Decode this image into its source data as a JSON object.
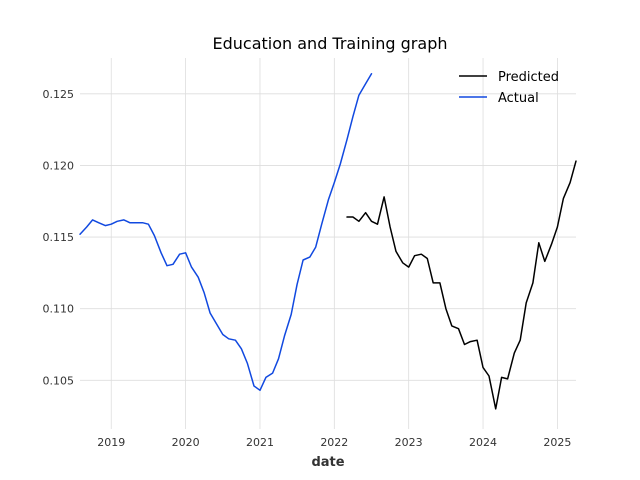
{
  "chart_data": {
    "type": "line",
    "title": "Education and Training graph",
    "xlabel": "date",
    "ylabel": "",
    "x_ticks": [
      "2019",
      "2020",
      "2021",
      "2022",
      "2023",
      "2024",
      "2025"
    ],
    "y_ticks": [
      "0.105",
      "0.110",
      "0.115",
      "0.120",
      "0.125"
    ],
    "xlim": [
      2018.58,
      2025.25
    ],
    "ylim": [
      0.1016,
      0.1275
    ],
    "grid": true,
    "legend": "top-right",
    "series": [
      {
        "name": "Predicted",
        "color": "#000000",
        "x": [
          2022.17,
          2022.25,
          2022.33,
          2022.42,
          2022.5,
          2022.58,
          2022.67,
          2022.75,
          2022.83,
          2022.92,
          2023.0,
          2023.08,
          2023.17,
          2023.25,
          2023.33,
          2023.42,
          2023.5,
          2023.58,
          2023.67,
          2023.75,
          2023.83,
          2023.92,
          2024.0,
          2024.08,
          2024.17,
          2024.25,
          2024.33,
          2024.42,
          2024.5,
          2024.58,
          2024.67,
          2024.75,
          2024.83,
          2024.92,
          2025.0,
          2025.08,
          2025.17,
          2025.25
        ],
        "y": [
          0.1164,
          0.1164,
          0.1161,
          0.1167,
          0.1161,
          0.1159,
          0.1178,
          0.1157,
          0.114,
          0.1132,
          0.1129,
          0.1137,
          0.1138,
          0.1135,
          0.1118,
          0.1118,
          0.11,
          0.1088,
          0.1086,
          0.1075,
          0.1077,
          0.1078,
          0.1059,
          0.1053,
          0.103,
          0.1052,
          0.1051,
          0.1069,
          0.1078,
          0.1104,
          0.1118,
          0.1146,
          0.1133,
          0.1145,
          0.1157,
          0.1177,
          0.1188,
          0.1203
        ]
      },
      {
        "name": "Actual",
        "color": "#1149e0",
        "x": [
          2018.58,
          2018.67,
          2018.75,
          2018.83,
          2018.92,
          2019.0,
          2019.08,
          2019.17,
          2019.25,
          2019.33,
          2019.42,
          2019.5,
          2019.58,
          2019.67,
          2019.75,
          2019.83,
          2019.92,
          2020.0,
          2020.08,
          2020.17,
          2020.25,
          2020.33,
          2020.42,
          2020.5,
          2020.58,
          2020.67,
          2020.75,
          2020.83,
          2020.92,
          2021.0,
          2021.08,
          2021.17,
          2021.25,
          2021.33,
          2021.42,
          2021.5,
          2021.58,
          2021.67,
          2021.75,
          2021.83,
          2021.92,
          2022.0,
          2022.08,
          2022.17,
          2022.25,
          2022.33,
          2022.42,
          2022.5
        ],
        "y": [
          0.1152,
          0.1157,
          0.1162,
          0.116,
          0.1158,
          0.1159,
          0.1161,
          0.1162,
          0.116,
          0.116,
          0.116,
          0.1159,
          0.1151,
          0.1139,
          0.113,
          0.1131,
          0.1138,
          0.1139,
          0.1129,
          0.1122,
          0.1111,
          0.1097,
          0.1089,
          0.1082,
          0.1079,
          0.1078,
          0.1072,
          0.1062,
          0.1046,
          0.1043,
          0.1052,
          0.1055,
          0.1065,
          0.1081,
          0.1096,
          0.1117,
          0.1134,
          0.1136,
          0.1143,
          0.1159,
          0.1176,
          0.1188,
          0.1201,
          0.1218,
          0.1234,
          0.1249,
          0.1257,
          0.1264
        ]
      }
    ]
  }
}
